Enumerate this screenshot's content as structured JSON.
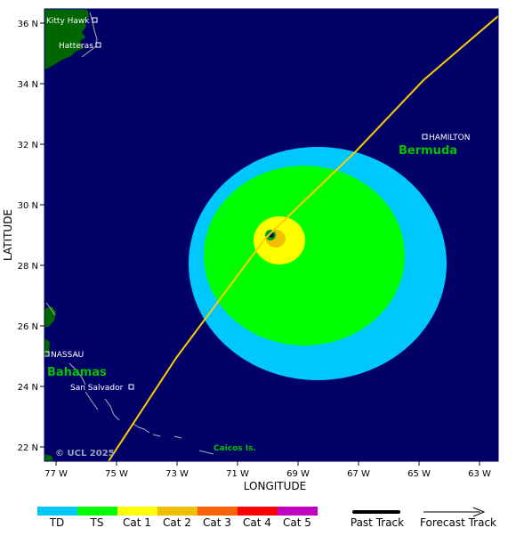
{
  "axes": {
    "x_title": "LONGITUDE",
    "y_title": "LATITUDE",
    "x_ticks": [
      "77 W",
      "75 W",
      "73 W",
      "71 W",
      "69 W",
      "67 W",
      "65 W",
      "63 W"
    ],
    "y_ticks": [
      "36 N",
      "34 N",
      "32 N",
      "30 N",
      "28 N",
      "26 N",
      "24 N",
      "22 N"
    ]
  },
  "places": {
    "kitty_hawk": "Kitty Hawk",
    "hatteras": "Hatteras",
    "hamilton": "HAMILTON",
    "bermuda": "Bermuda",
    "nassau": "NASSAU",
    "bahamas": "Bahamas",
    "san_salvador": "San Salvador",
    "caicos": "Caicos Is."
  },
  "copyright": "© UCL 2025",
  "legend": {
    "categories": [
      {
        "label": "TD",
        "color": "#00c8ff"
      },
      {
        "label": "TS",
        "color": "#00ff00"
      },
      {
        "label": "Cat 1",
        "color": "#ffff00"
      },
      {
        "label": "Cat 2",
        "color": "#f0c000"
      },
      {
        "label": "Cat 3",
        "color": "#ff6000"
      },
      {
        "label": "Cat 4",
        "color": "#ff0000"
      },
      {
        "label": "Cat 5",
        "color": "#c000c0"
      }
    ],
    "past_track": "Past Track",
    "forecast_track": "Forecast Track"
  },
  "colors": {
    "ocean": "#000066",
    "land": "#006600",
    "track": "#ffcc00",
    "coast": "#b0b0b0"
  }
}
